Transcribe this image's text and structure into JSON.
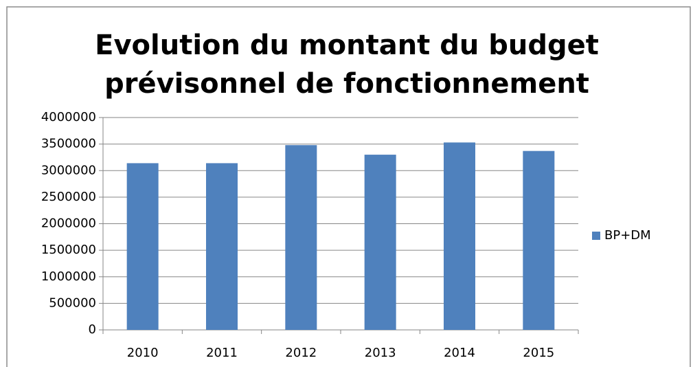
{
  "chart_data": {
    "type": "bar",
    "title": "Evolution du montant du budget prévisonnel de fonctionnement",
    "categories": [
      "2010",
      "2011",
      "2012",
      "2013",
      "2014",
      "2015"
    ],
    "series": [
      {
        "name": "BP+DM",
        "color": "#4f81bd",
        "values": [
          3140000,
          3140000,
          3480000,
          3300000,
          3530000,
          3370000
        ]
      }
    ],
    "ylim": [
      0,
      4000000
    ],
    "yticks": [
      0,
      500000,
      1000000,
      1500000,
      2000000,
      2500000,
      3000000,
      3500000,
      4000000
    ],
    "grid": true,
    "legend": "right"
  }
}
